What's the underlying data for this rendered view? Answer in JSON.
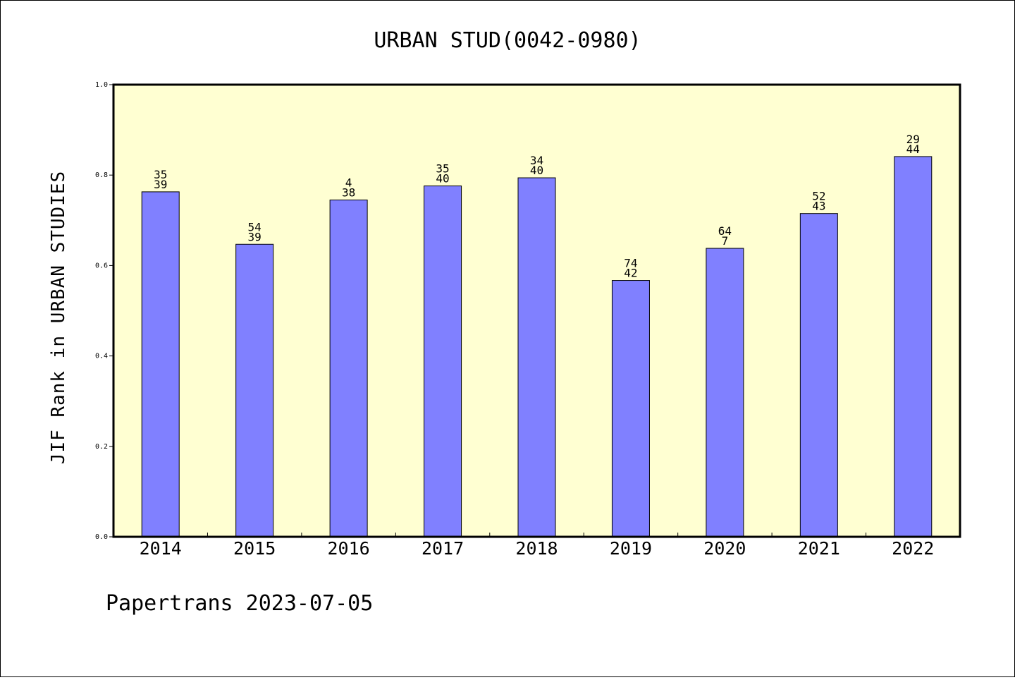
{
  "chart_data": {
    "type": "bar",
    "title": "URBAN STUD(0042-0980)",
    "xlabel": "",
    "ylabel": "JIF Rank in URBAN STUDIES",
    "footer": "Papertrans 2023-07-05",
    "categories": [
      "2014",
      "2015",
      "2016",
      "2017",
      "2018",
      "2019",
      "2020",
      "2021",
      "2022"
    ],
    "values": [
      0.763,
      0.647,
      0.745,
      0.776,
      0.794,
      0.567,
      0.638,
      0.715,
      0.841
    ],
    "labels_top": [
      "35",
      "54",
      "4",
      "35",
      "34",
      "74",
      "64",
      "52",
      "29"
    ],
    "labels_bottom": [
      "39",
      "39",
      "38",
      "40",
      "40",
      "42",
      "7",
      "43",
      "44"
    ],
    "ylim": [
      0,
      1.0
    ],
    "yticks": [
      "0.0",
      "0.2",
      "0.4",
      "0.6",
      "0.8",
      "1.0"
    ],
    "grid": false,
    "colors": {
      "plot_background": "#ffffd2",
      "bar_fill": "#8080ff",
      "bar_stroke": "#000000",
      "axis": "#000000"
    }
  }
}
